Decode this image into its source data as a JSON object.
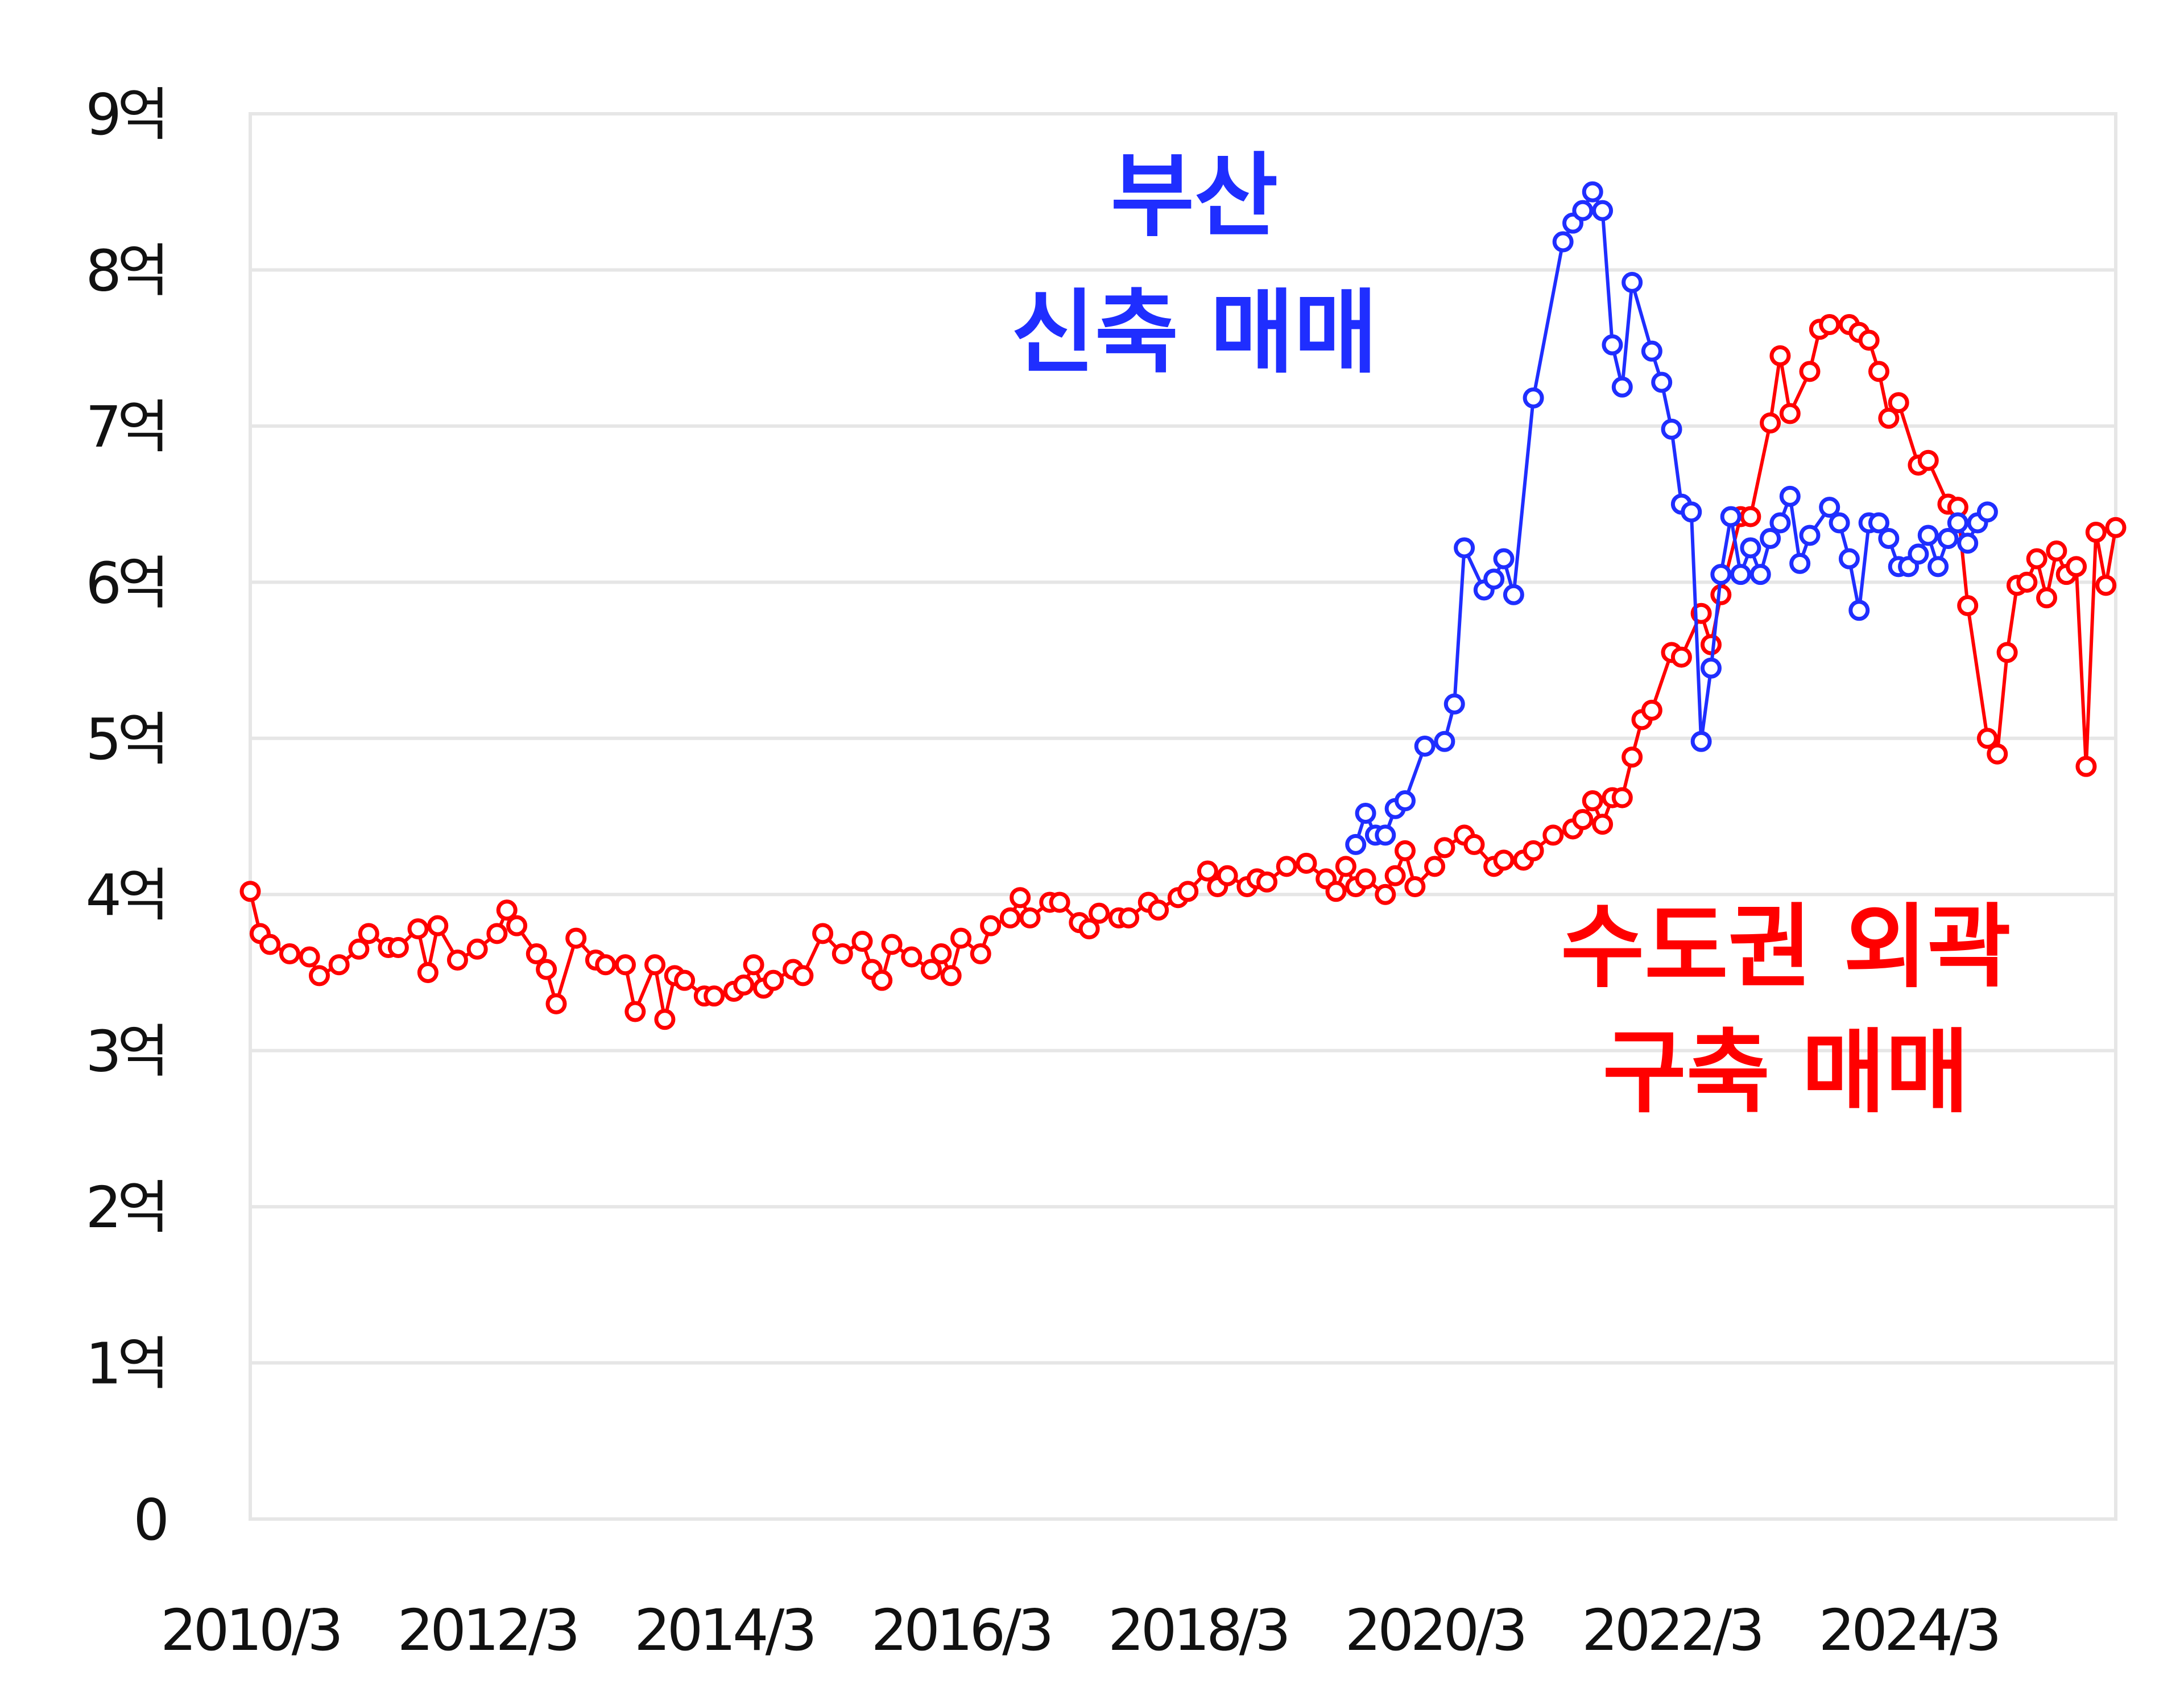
{
  "chart_data": {
    "type": "line",
    "title": "",
    "xlabel": "",
    "ylabel": "",
    "x_ticks": [
      "2010/3",
      "2012/3",
      "2014/3",
      "2016/3",
      "2018/3",
      "2020/3",
      "2022/3",
      "2024/3"
    ],
    "y_ticks": [
      {
        "value": 0,
        "label": "0"
      },
      {
        "value": 1,
        "label": "1억"
      },
      {
        "value": 2,
        "label": "2억"
      },
      {
        "value": 3,
        "label": "3억"
      },
      {
        "value": 4,
        "label": "4억"
      },
      {
        "value": 5,
        "label": "5억"
      },
      {
        "value": 6,
        "label": "6억"
      },
      {
        "value": 7,
        "label": "7억"
      },
      {
        "value": 8,
        "label": "8억"
      },
      {
        "value": 9,
        "label": "9억"
      }
    ],
    "ylim": [
      0,
      9
    ],
    "xlim": [
      "2010-03",
      "2025-12"
    ],
    "grid": true,
    "series": [
      {
        "color": "#ff0000",
        "label_lines": [
          "수도권 외곽",
          "구축 매매"
        ],
        "points": [
          [
            "2010-03",
            4.02
          ],
          [
            "2010-04",
            3.75
          ],
          [
            "2010-05",
            3.68
          ],
          [
            "2010-07",
            3.62
          ],
          [
            "2010-09",
            3.6
          ],
          [
            "2010-10",
            3.48
          ],
          [
            "2010-12",
            3.55
          ],
          [
            "2011-02",
            3.65
          ],
          [
            "2011-03",
            3.75
          ],
          [
            "2011-05",
            3.66
          ],
          [
            "2011-06",
            3.66
          ],
          [
            "2011-08",
            3.78
          ],
          [
            "2011-09",
            3.5
          ],
          [
            "2011-10",
            3.8
          ],
          [
            "2011-12",
            3.58
          ],
          [
            "2012-02",
            3.65
          ],
          [
            "2012-04",
            3.75
          ],
          [
            "2012-05",
            3.9
          ],
          [
            "2012-06",
            3.8
          ],
          [
            "2012-08",
            3.62
          ],
          [
            "2012-09",
            3.52
          ],
          [
            "2012-10",
            3.3
          ],
          [
            "2012-12",
            3.72
          ],
          [
            "2013-02",
            3.58
          ],
          [
            "2013-03",
            3.55
          ],
          [
            "2013-05",
            3.55
          ],
          [
            "2013-06",
            3.25
          ],
          [
            "2013-08",
            3.55
          ],
          [
            "2013-09",
            3.2
          ],
          [
            "2013-10",
            3.48
          ],
          [
            "2013-11",
            3.45
          ],
          [
            "2014-01",
            3.35
          ],
          [
            "2014-02",
            3.35
          ],
          [
            "2014-04",
            3.38
          ],
          [
            "2014-05",
            3.42
          ],
          [
            "2014-06",
            3.55
          ],
          [
            "2014-07",
            3.4
          ],
          [
            "2014-08",
            3.45
          ],
          [
            "2014-10",
            3.52
          ],
          [
            "2014-11",
            3.48
          ],
          [
            "2015-01",
            3.75
          ],
          [
            "2015-03",
            3.62
          ],
          [
            "2015-05",
            3.7
          ],
          [
            "2015-06",
            3.52
          ],
          [
            "2015-07",
            3.45
          ],
          [
            "2015-08",
            3.68
          ],
          [
            "2015-10",
            3.6
          ],
          [
            "2015-12",
            3.52
          ],
          [
            "2016-01",
            3.62
          ],
          [
            "2016-02",
            3.48
          ],
          [
            "2016-03",
            3.72
          ],
          [
            "2016-05",
            3.62
          ],
          [
            "2016-06",
            3.8
          ],
          [
            "2016-08",
            3.85
          ],
          [
            "2016-09",
            3.98
          ],
          [
            "2016-10",
            3.85
          ],
          [
            "2016-12",
            3.95
          ],
          [
            "2017-01",
            3.95
          ],
          [
            "2017-03",
            3.82
          ],
          [
            "2017-04",
            3.78
          ],
          [
            "2017-05",
            3.88
          ],
          [
            "2017-07",
            3.85
          ],
          [
            "2017-08",
            3.85
          ],
          [
            "2017-10",
            3.95
          ],
          [
            "2017-11",
            3.9
          ],
          [
            "2018-01",
            3.98
          ],
          [
            "2018-02",
            4.02
          ],
          [
            "2018-04",
            4.15
          ],
          [
            "2018-05",
            4.05
          ],
          [
            "2018-06",
            4.12
          ],
          [
            "2018-08",
            4.05
          ],
          [
            "2018-09",
            4.1
          ],
          [
            "2018-10",
            4.08
          ],
          [
            "2018-12",
            4.18
          ],
          [
            "2019-02",
            4.2
          ],
          [
            "2019-04",
            4.1
          ],
          [
            "2019-05",
            4.02
          ],
          [
            "2019-06",
            4.18
          ],
          [
            "2019-07",
            4.05
          ],
          [
            "2019-08",
            4.1
          ],
          [
            "2019-10",
            4.0
          ],
          [
            "2019-11",
            4.12
          ],
          [
            "2019-12",
            4.28
          ],
          [
            "2020-01",
            4.05
          ],
          [
            "2020-03",
            4.18
          ],
          [
            "2020-04",
            4.3
          ],
          [
            "2020-06",
            4.38
          ],
          [
            "2020-07",
            4.32
          ],
          [
            "2020-09",
            4.18
          ],
          [
            "2020-10",
            4.22
          ],
          [
            "2020-12",
            4.22
          ],
          [
            "2021-01",
            4.28
          ],
          [
            "2021-03",
            4.38
          ],
          [
            "2021-05",
            4.42
          ],
          [
            "2021-06",
            4.48
          ],
          [
            "2021-07",
            4.6
          ],
          [
            "2021-08",
            4.45
          ],
          [
            "2021-09",
            4.62
          ],
          [
            "2021-10",
            4.62
          ],
          [
            "2021-11",
            4.88
          ],
          [
            "2021-12",
            5.12
          ],
          [
            "2022-01",
            5.18
          ],
          [
            "2022-03",
            5.55
          ],
          [
            "2022-04",
            5.52
          ],
          [
            "2022-06",
            5.8
          ],
          [
            "2022-07",
            5.6
          ],
          [
            "2022-08",
            5.92
          ],
          [
            "2022-10",
            6.42
          ],
          [
            "2022-11",
            6.42
          ],
          [
            "2023-01",
            7.02
          ],
          [
            "2023-02",
            7.45
          ],
          [
            "2023-03",
            7.08
          ],
          [
            "2023-05",
            7.35
          ],
          [
            "2023-06",
            7.62
          ],
          [
            "2023-07",
            7.65
          ],
          [
            "2023-09",
            7.65
          ],
          [
            "2023-10",
            7.6
          ],
          [
            "2023-11",
            7.55
          ],
          [
            "2023-12",
            7.35
          ],
          [
            "2024-01",
            7.05
          ],
          [
            "2024-02",
            7.15
          ],
          [
            "2024-04",
            6.75
          ],
          [
            "2024-05",
            6.78
          ],
          [
            "2024-07",
            6.5
          ],
          [
            "2024-08",
            6.48
          ],
          [
            "2024-09",
            5.85
          ],
          [
            "2024-11",
            5.0
          ],
          [
            "2024-12",
            4.9
          ],
          [
            "2025-01",
            5.55
          ],
          [
            "2025-02",
            5.98
          ],
          [
            "2025-03",
            6.0
          ],
          [
            "2025-04",
            6.15
          ],
          [
            "2025-05",
            5.9
          ],
          [
            "2025-06",
            6.2
          ],
          [
            "2025-07",
            6.05
          ],
          [
            "2025-08",
            6.1
          ],
          [
            "2025-09",
            4.82
          ],
          [
            "2025-10",
            6.32
          ],
          [
            "2025-11",
            5.98
          ],
          [
            "2025-12",
            6.35
          ]
        ]
      },
      {
        "color": "#1f2eff",
        "label_lines": [
          "부산",
          "신축 매매"
        ],
        "points": [
          [
            "2019-07",
            4.32
          ],
          [
            "2019-08",
            4.52
          ],
          [
            "2019-09",
            4.38
          ],
          [
            "2019-10",
            4.38
          ],
          [
            "2019-11",
            4.55
          ],
          [
            "2019-12",
            4.6
          ],
          [
            "2020-02",
            4.95
          ],
          [
            "2020-04",
            4.98
          ],
          [
            "2020-05",
            5.22
          ],
          [
            "2020-06",
            6.22
          ],
          [
            "2020-08",
            5.95
          ],
          [
            "2020-09",
            6.02
          ],
          [
            "2020-10",
            6.15
          ],
          [
            "2020-11",
            5.92
          ],
          [
            "2021-01",
            7.18
          ],
          [
            "2021-04",
            8.18
          ],
          [
            "2021-05",
            8.3
          ],
          [
            "2021-06",
            8.38
          ],
          [
            "2021-07",
            8.5
          ],
          [
            "2021-08",
            8.38
          ],
          [
            "2021-09",
            7.52
          ],
          [
            "2021-10",
            7.25
          ],
          [
            "2021-11",
            7.92
          ],
          [
            "2022-01",
            7.48
          ],
          [
            "2022-02",
            7.28
          ],
          [
            "2022-03",
            6.98
          ],
          [
            "2022-04",
            6.5
          ],
          [
            "2022-05",
            6.45
          ],
          [
            "2022-06",
            4.98
          ],
          [
            "2022-07",
            5.45
          ],
          [
            "2022-08",
            6.05
          ],
          [
            "2022-09",
            6.42
          ],
          [
            "2022-10",
            6.05
          ],
          [
            "2022-11",
            6.22
          ],
          [
            "2022-12",
            6.05
          ],
          [
            "2023-01",
            6.28
          ],
          [
            "2023-02",
            6.38
          ],
          [
            "2023-03",
            6.55
          ],
          [
            "2023-04",
            6.12
          ],
          [
            "2023-05",
            6.3
          ],
          [
            "2023-07",
            6.48
          ],
          [
            "2023-08",
            6.38
          ],
          [
            "2023-09",
            6.15
          ],
          [
            "2023-10",
            5.82
          ],
          [
            "2023-11",
            6.38
          ],
          [
            "2023-12",
            6.38
          ],
          [
            "2024-01",
            6.28
          ],
          [
            "2024-02",
            6.1
          ],
          [
            "2024-03",
            6.1
          ],
          [
            "2024-04",
            6.18
          ],
          [
            "2024-05",
            6.3
          ],
          [
            "2024-06",
            6.1
          ],
          [
            "2024-07",
            6.28
          ],
          [
            "2024-08",
            6.38
          ],
          [
            "2024-09",
            6.25
          ],
          [
            "2024-10",
            6.38
          ],
          [
            "2024-11",
            6.45
          ]
        ]
      }
    ]
  }
}
